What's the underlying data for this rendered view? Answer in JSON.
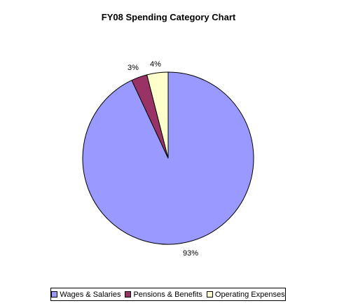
{
  "chart_data": {
    "type": "pie",
    "title": "FY08 Spending Category Chart",
    "slices": [
      {
        "name": "Wages & Salaries",
        "value": 93,
        "label": "93%",
        "color": "#9999ff"
      },
      {
        "name": "Pensions & Benefits",
        "value": 3,
        "label": "3%",
        "color": "#993366"
      },
      {
        "name": "Operating Expenses",
        "value": 4,
        "label": "4%",
        "color": "#ffffcc"
      }
    ],
    "legend_position": "bottom"
  }
}
